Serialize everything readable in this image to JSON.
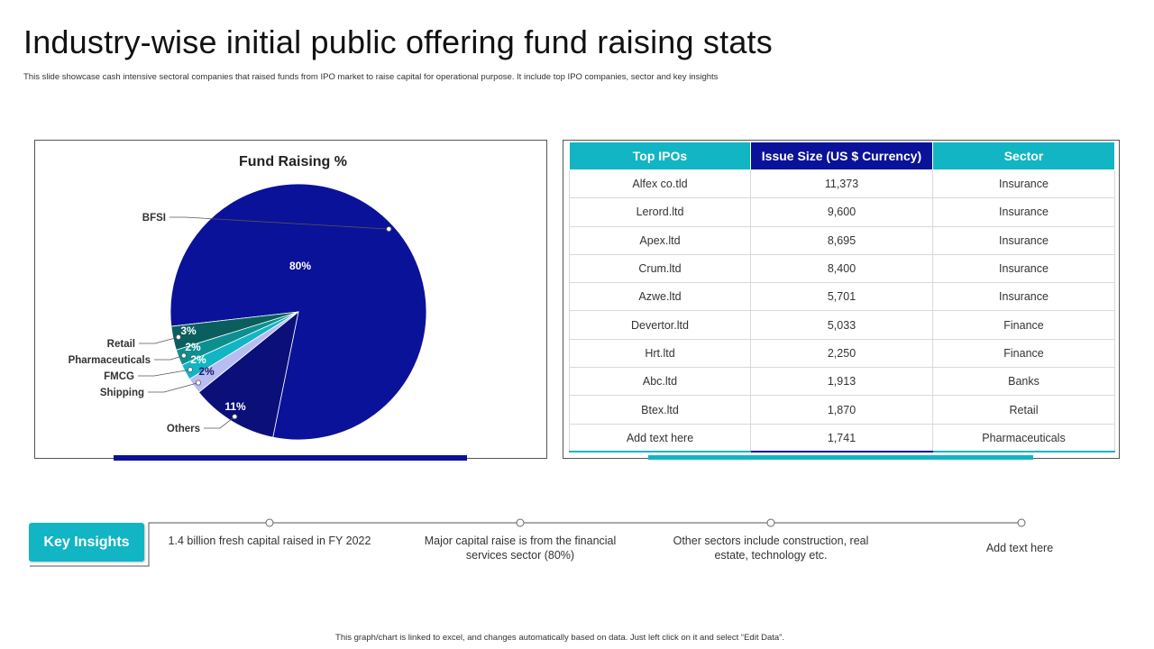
{
  "header": {
    "title": "Industry-wise initial public offering fund raising stats",
    "subtitle": "This slide showcase cash intensive sectoral companies that raised funds from IPO  market to raise capital for operational purpose. It include top IPO  companies, sector and key insights"
  },
  "colors": {
    "navy": "#0a1299",
    "dark_navy": "#0a0f7a",
    "teal": "#12b5c3",
    "dark_teal": "#0e6b6b",
    "lavender": "#b8bcf2"
  },
  "chart_data": {
    "type": "pie",
    "title": "Fund Raising %",
    "slices": [
      {
        "name": "BFSI",
        "value": 80,
        "label": "80%",
        "color": "#0a1299"
      },
      {
        "name": "Others",
        "value": 11,
        "label": "11%",
        "color": "#0a0f7a"
      },
      {
        "name": "Shipping",
        "value": 2,
        "label": "2%",
        "color": "#b8bcf2"
      },
      {
        "name": "FMCG",
        "value": 2,
        "label": "2%",
        "color": "#12b5c3"
      },
      {
        "name": "Pharmaceuticals",
        "value": 2,
        "label": "2%",
        "color": "#0e8f8f"
      },
      {
        "name": "Retail",
        "value": 3,
        "label": "3%",
        "color": "#0b5e5e"
      }
    ]
  },
  "table": {
    "headers": [
      "Top IPOs",
      "Issue Size (US $ Currency)",
      "Sector"
    ],
    "rows": [
      [
        "Alfex co.tld",
        "11,373",
        "Insurance"
      ],
      [
        "Lerord.ltd",
        "9,600",
        "Insurance"
      ],
      [
        "Apex.ltd",
        "8,695",
        "Insurance"
      ],
      [
        "Crum.ltd",
        "8,400",
        "Insurance"
      ],
      [
        "Azwe.ltd",
        "5,701",
        "Insurance"
      ],
      [
        "Devertor.ltd",
        "5,033",
        "Finance"
      ],
      [
        "Hrt.ltd",
        "2,250",
        "Finance"
      ],
      [
        "Abc.ltd",
        "1,913",
        "Banks"
      ],
      [
        "Btex.ltd",
        "1,870",
        "Retail"
      ],
      [
        "Add text here",
        "1,741",
        "Pharmaceuticals"
      ]
    ]
  },
  "insights": {
    "button_label": "Key Insights",
    "items": [
      "1.4 billion fresh capital raised in FY 2022",
      "Major capital raise is from the financial services sector (80%)",
      "Other sectors include construction, real estate, technology etc.",
      "Add text here"
    ]
  },
  "footer": "This graph/chart is linked to excel, and changes automatically based on data. Just left click on it and select “Edit Data”."
}
